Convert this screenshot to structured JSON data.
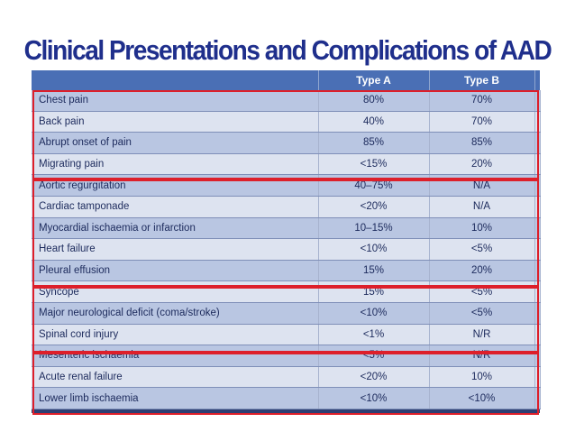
{
  "title": "Clinical Presentations and Complications of AAD",
  "table": {
    "headers": [
      "",
      "Type A",
      "Type B"
    ],
    "rows": [
      {
        "label": "Chest pain",
        "type_a": "80%",
        "type_b": "70%"
      },
      {
        "label": "Back pain",
        "type_a": "40%",
        "type_b": "70%"
      },
      {
        "label": "Abrupt onset of pain",
        "type_a": "85%",
        "type_b": "85%"
      },
      {
        "label": "Migrating pain",
        "type_a": "<15%",
        "type_b": "20%"
      },
      {
        "label": "Aortic regurgitation",
        "type_a": "40–75%",
        "type_b": "N/A"
      },
      {
        "label": "Cardiac tamponade",
        "type_a": "<20%",
        "type_b": "N/A"
      },
      {
        "label": "Myocardial ischaemia or infarction",
        "type_a": "10–15%",
        "type_b": "10%"
      },
      {
        "label": "Heart failure",
        "type_a": "<10%",
        "type_b": "<5%"
      },
      {
        "label": "Pleural effusion",
        "type_a": "15%",
        "type_b": "20%"
      },
      {
        "label": "Syncope",
        "type_a": "15%",
        "type_b": "<5%"
      },
      {
        "label": "Major neurological deficit (coma/stroke)",
        "type_a": "<10%",
        "type_b": "<5%"
      },
      {
        "label": "Spinal cord injury",
        "type_a": "<1%",
        "type_b": "N/R"
      },
      {
        "label": "Mesenteric ischaemia",
        "type_a": "<5%",
        "type_b": "N/R"
      },
      {
        "label": "Acute renal failure",
        "type_a": "<20%",
        "type_b": "10%"
      },
      {
        "label": "Lower limb ischaemia",
        "type_a": "<10%",
        "type_b": "<10%"
      }
    ]
  },
  "colors": {
    "title": "#1f2f8c",
    "header_bg": "#4a6fb5",
    "row_dark": "#b9c6e2",
    "row_light": "#dde3f0",
    "group_outline": "#dd1f2a"
  }
}
